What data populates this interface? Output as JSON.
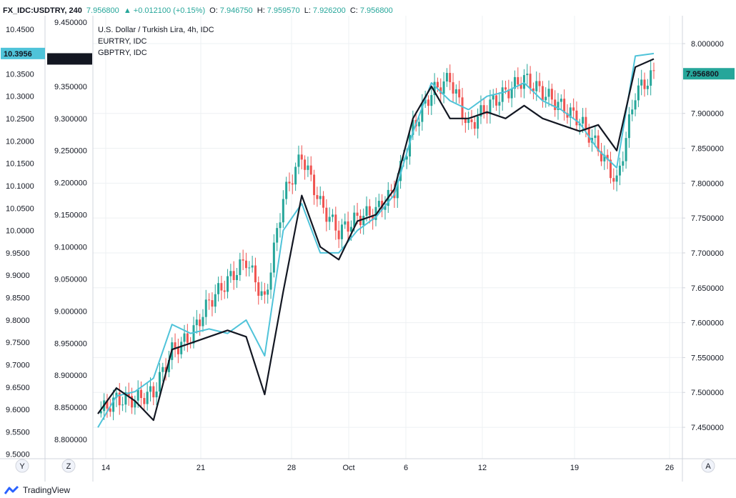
{
  "header": {
    "symbol": "FX_IDC:USDTRY, 240",
    "last": "7.956800",
    "change": "▲ +0.012100 (+0.15%)",
    "o_label": "O:",
    "o": "7.946750",
    "h_label": "H:",
    "h": "7.959570",
    "l_label": "L:",
    "l": "7.926200",
    "c_label": "C:",
    "c": "7.956800"
  },
  "footer": {
    "brand": "TradingView"
  },
  "colors": {
    "up": "#26a69a",
    "down": "#ef5350",
    "eurtry": "#4fc3d9",
    "gbptry": "#131722",
    "grid": "#eef0f3",
    "axis": "#d1d4dc"
  },
  "chart_data": {
    "type": "line",
    "legend": [
      "U.S. Dollar / Turkish Lira, 4h, IDC",
      "EURTRY, IDC",
      "GBPTRY, IDC"
    ],
    "x_ticks": [
      "14",
      "21",
      "28",
      "Oct",
      "6",
      "12",
      "19",
      "26"
    ],
    "corner_labels": [
      "Y",
      "Z",
      "A"
    ],
    "axes": {
      "left_outer": {
        "series": "EURTRY",
        "range": [
          9.49,
          10.48
        ],
        "ticks": [
          "10.4500",
          "10.4000",
          "10.3500",
          "10.3000",
          "10.2500",
          "10.2000",
          "10.1500",
          "10.1000",
          "10.0500",
          "10.0000",
          "9.9500",
          "9.9000",
          "9.8500",
          "9.8000",
          "9.7500",
          "9.7000",
          "9.6500",
          "9.6000",
          "9.5500",
          "9.5000"
        ],
        "current": "10.3956"
      },
      "left_inner": {
        "series": "GBPTRY",
        "range": [
          8.77,
          9.46
        ],
        "ticks": [
          "9.450000",
          "9.350000",
          "9.300000",
          "9.250000",
          "9.200000",
          "9.150000",
          "9.100000",
          "9.050000",
          "9.000000",
          "8.950000",
          "8.900000",
          "8.850000",
          "8.800000"
        ],
        "current": "9.392720"
      },
      "right": {
        "series": "USDTRY",
        "range": [
          7.405,
          8.04
        ],
        "ticks": [
          "8.000000",
          "7.900000",
          "7.850000",
          "7.800000",
          "7.750000",
          "7.700000",
          "7.650000",
          "7.600000",
          "7.550000",
          "7.500000",
          "7.450000"
        ],
        "current": "7.956800"
      }
    },
    "series": [
      {
        "name": "U.S. Dollar / Turkish Lira, 4h, IDC",
        "style": "candlestick",
        "x": [
          "Sep 14",
          "Sep 15",
          "Sep 16",
          "Sep 17",
          "Sep 18",
          "Sep 21",
          "Sep 22",
          "Sep 23",
          "Sep 24",
          "Sep 25",
          "Sep 28",
          "Sep 29",
          "Sep 30",
          "Oct 1",
          "Oct 2",
          "Oct 5",
          "Oct 6",
          "Oct 7",
          "Oct 8",
          "Oct 9",
          "Oct 12",
          "Oct 13",
          "Oct 14",
          "Oct 15",
          "Oct 16",
          "Oct 19",
          "Oct 20",
          "Oct 21",
          "Oct 22",
          "Oct 23",
          "Oct 24"
        ],
        "values": [
          7.47,
          7.49,
          7.49,
          7.5,
          7.56,
          7.58,
          7.63,
          7.66,
          7.69,
          7.63,
          7.78,
          7.84,
          7.77,
          7.73,
          7.75,
          7.76,
          7.79,
          7.88,
          7.93,
          7.95,
          7.88,
          7.91,
          7.93,
          7.95,
          7.93,
          7.91,
          7.89,
          7.85,
          7.8,
          7.93,
          7.956
        ]
      },
      {
        "name": "EURTRY, IDC",
        "x": [
          "Sep 14",
          "Sep 15",
          "Sep 16",
          "Sep 17",
          "Sep 18",
          "Sep 21",
          "Sep 22",
          "Sep 23",
          "Sep 24",
          "Sep 25",
          "Sep 28",
          "Sep 29",
          "Sep 30",
          "Oct 1",
          "Oct 2",
          "Oct 5",
          "Oct 6",
          "Oct 7",
          "Oct 8",
          "Oct 9",
          "Oct 12",
          "Oct 13",
          "Oct 14",
          "Oct 15",
          "Oct 16",
          "Oct 19",
          "Oct 20",
          "Oct 21",
          "Oct 22",
          "Oct 23",
          "Oct 24"
        ],
        "values": [
          9.56,
          9.63,
          9.64,
          9.67,
          9.79,
          9.77,
          9.78,
          9.77,
          9.8,
          9.72,
          10.0,
          10.06,
          9.95,
          9.95,
          10.0,
          10.03,
          10.08,
          10.22,
          10.33,
          10.29,
          10.27,
          10.3,
          10.31,
          10.33,
          10.29,
          10.27,
          10.24,
          10.18,
          10.14,
          10.39,
          10.3956
        ]
      },
      {
        "name": "GBPTRY, IDC",
        "x": [
          "Sep 14",
          "Sep 15",
          "Sep 16",
          "Sep 17",
          "Sep 18",
          "Sep 21",
          "Sep 22",
          "Sep 23",
          "Sep 24",
          "Sep 25",
          "Sep 28",
          "Sep 29",
          "Sep 30",
          "Oct 1",
          "Oct 2",
          "Oct 5",
          "Oct 6",
          "Oct 7",
          "Oct 8",
          "Oct 9",
          "Oct 12",
          "Oct 13",
          "Oct 14",
          "Oct 15",
          "Oct 16",
          "Oct 19",
          "Oct 20",
          "Oct 21",
          "Oct 22",
          "Oct 23",
          "Oct 24"
        ],
        "values": [
          8.84,
          8.88,
          8.86,
          8.83,
          8.94,
          8.95,
          8.96,
          8.97,
          8.96,
          8.87,
          9.03,
          9.18,
          9.1,
          9.08,
          9.14,
          9.15,
          9.19,
          9.3,
          9.35,
          9.3,
          9.3,
          9.31,
          9.3,
          9.32,
          9.3,
          9.29,
          9.28,
          9.29,
          9.25,
          9.38,
          9.39272
        ]
      }
    ]
  }
}
